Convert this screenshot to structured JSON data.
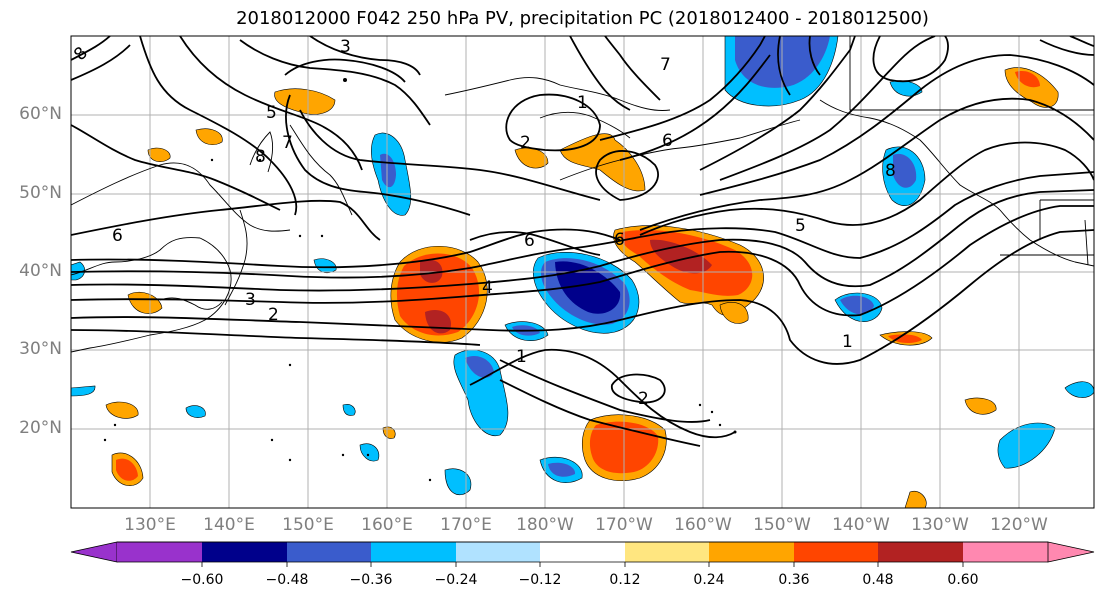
{
  "title": "2018012000 F042 250 hPa PV, precipitation PC (2018012400 - 2018012500)",
  "map": {
    "lat_labels": [
      "60°N",
      "50°N",
      "40°N",
      "30°N",
      "20°N"
    ],
    "lon_labels": [
      "130°E",
      "140°E",
      "150°E",
      "160°E",
      "170°E",
      "180°W",
      "170°W",
      "160°W",
      "150°W",
      "140°W",
      "130°W",
      "120°W"
    ],
    "pv_contour_labels": [
      "8",
      "3",
      "5",
      "7",
      "8",
      "1",
      "2",
      "6",
      "6",
      "6",
      "4",
      "3",
      "2",
      "1",
      "2",
      "1",
      "5",
      "8",
      "6",
      "7"
    ],
    "colors": {
      "grid": "#b0b0b0",
      "contour": "#000000",
      "label": "#7f7f7f"
    }
  },
  "colorbar": {
    "ticks": [
      "−0.60",
      "−0.48",
      "−0.36",
      "−0.24",
      "−0.12",
      "0.12",
      "0.24",
      "0.36",
      "0.48",
      "0.60"
    ],
    "colors": [
      "#9932cc",
      "#00008b",
      "#3a5ccc",
      "#00bfff",
      "#b0e2ff",
      "#ffffff",
      "#ffe680",
      "#ffa500",
      "#ff4500",
      "#b22222",
      "#ff88b0"
    ]
  }
}
